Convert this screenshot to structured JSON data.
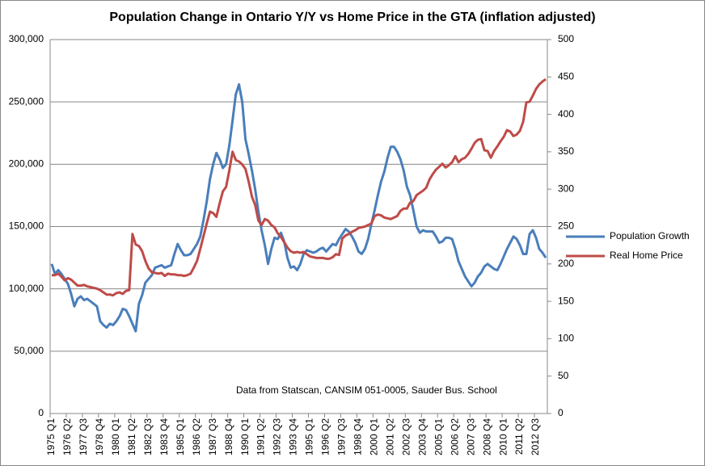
{
  "chart_data": {
    "type": "line",
    "title": "Population Change in Ontario Y/Y vs  Home Price in the GTA (inflation adjusted)",
    "annotation": "Data from Statscan, CANSIM 051-0005,  Sauder Bus. School",
    "categories": [
      "1975 Q1",
      null,
      null,
      null,
      null,
      "1976 Q2",
      null,
      null,
      null,
      null,
      "1977 Q3",
      null,
      null,
      null,
      null,
      "1978 Q4",
      null,
      null,
      null,
      null,
      "1980 Q1",
      null,
      null,
      null,
      null,
      "1981 Q2",
      null,
      null,
      null,
      null,
      "1982 Q3",
      null,
      null,
      null,
      null,
      "1983 Q4",
      null,
      null,
      null,
      null,
      "1985 Q1",
      null,
      null,
      null,
      null,
      "1986 Q2",
      null,
      null,
      null,
      null,
      "1987 Q3",
      null,
      null,
      null,
      null,
      "1988 Q4",
      null,
      null,
      null,
      null,
      "1990 Q1",
      null,
      null,
      null,
      null,
      "1991 Q2",
      null,
      null,
      null,
      null,
      "1992 Q3",
      null,
      null,
      null,
      null,
      "1993 Q4",
      null,
      null,
      null,
      null,
      "1995 Q1",
      null,
      null,
      null,
      null,
      "1996 Q2",
      null,
      null,
      null,
      null,
      "1997 Q3",
      null,
      null,
      null,
      null,
      "1998 Q4",
      null,
      null,
      null,
      null,
      "2000 Q1",
      null,
      null,
      null,
      null,
      "2001 Q2",
      null,
      null,
      null,
      null,
      "2002 Q3",
      null,
      null,
      null,
      null,
      "2003 Q4",
      null,
      null,
      null,
      null,
      "2005 Q1",
      null,
      null,
      null,
      null,
      "2006 Q2",
      null,
      null,
      null,
      null,
      "2007 Q3",
      null,
      null,
      null,
      null,
      "2008 Q4",
      null,
      null,
      null,
      null,
      "2010 Q1",
      null,
      null,
      null,
      null,
      "2011 Q2",
      null,
      null,
      null,
      null,
      "2012 Q3",
      null,
      null,
      null
    ],
    "series": [
      {
        "name": "Population Growth",
        "color": "#4a7ebb",
        "axis": "y",
        "values": [
          120000,
          112000,
          115000,
          112000,
          108000,
          104000,
          96000,
          86000,
          92000,
          94000,
          91000,
          92000,
          90000,
          88000,
          86000,
          74000,
          71000,
          69000,
          72000,
          71000,
          74000,
          78000,
          84000,
          83000,
          78000,
          72000,
          66000,
          88000,
          95000,
          105000,
          108000,
          111000,
          117000,
          118000,
          119000,
          117000,
          118000,
          119000,
          128000,
          136000,
          131000,
          127000,
          127000,
          128000,
          132000,
          136000,
          142000,
          155000,
          170000,
          188000,
          200000,
          209000,
          204000,
          197000,
          200000,
          215000,
          235000,
          256000,
          264000,
          250000,
          220000,
          208000,
          195000,
          180000,
          162000,
          147000,
          135000,
          120000,
          132000,
          141000,
          140000,
          145000,
          138000,
          125000,
          117000,
          118000,
          115000,
          120000,
          128000,
          131000,
          130000,
          129000,
          130000,
          132000,
          133000,
          130000,
          133000,
          136000,
          135000,
          140000,
          144000,
          148000,
          146000,
          142000,
          137000,
          130000,
          128000,
          132000,
          140000,
          152000,
          163000,
          175000,
          186000,
          194000,
          205000,
          214000,
          214000,
          210000,
          204000,
          195000,
          182000,
          175000,
          163000,
          150000,
          145000,
          147000,
          146000,
          146000,
          146000,
          142000,
          137000,
          138000,
          141000,
          141000,
          140000,
          132000,
          122000,
          116000,
          110000,
          106000,
          102000,
          105000,
          110000,
          113000,
          118000,
          120000,
          118000,
          116000,
          115000,
          120000,
          126000,
          132000,
          137000,
          142000,
          140000,
          135000,
          128000,
          128000,
          144000,
          147000,
          141000,
          132000,
          129000,
          125000
        ]
      },
      {
        "name": "Real Home Price",
        "color": "#be4b48",
        "axis": "y2",
        "values": [
          185,
          185,
          187,
          183,
          178,
          181,
          179,
          175,
          171,
          171,
          172,
          170,
          169,
          168,
          167,
          165,
          162,
          159,
          159,
          158,
          161,
          162,
          160,
          164,
          165,
          240,
          226,
          224,
          217,
          204,
          194,
          189,
          188,
          187,
          188,
          184,
          187,
          186,
          186,
          185,
          185,
          184,
          185,
          187,
          195,
          204,
          220,
          237,
          254,
          270,
          268,
          263,
          281,
          297,
          303,
          325,
          350,
          339,
          337,
          333,
          327,
          310,
          290,
          279,
          258,
          252,
          260,
          258,
          252,
          249,
          241,
          236,
          229,
          222,
          217,
          215,
          216,
          215,
          216,
          213,
          210,
          209,
          208,
          208,
          208,
          207,
          207,
          209,
          213,
          212,
          234,
          238,
          240,
          243,
          245,
          248,
          249,
          250,
          252,
          254,
          264,
          266,
          265,
          262,
          261,
          260,
          262,
          264,
          271,
          274,
          274,
          282,
          284,
          292,
          295,
          298,
          302,
          313,
          320,
          326,
          330,
          334,
          329,
          332,
          336,
          344,
          336,
          340,
          342,
          347,
          354,
          362,
          366,
          367,
          352,
          351,
          342,
          351,
          357,
          364,
          370,
          379,
          377,
          371,
          373,
          378,
          390,
          416,
          417,
          425,
          434,
          440,
          444,
          447
        ]
      }
    ],
    "ylim": [
      0,
      300000
    ],
    "yticks": [
      0,
      {
        "value": 50000,
        "label": "50,000"
      },
      {
        "value": 100000,
        "label": "100,000"
      },
      {
        "value": 150000,
        "label": "150,000"
      },
      {
        "value": 200000,
        "label": "200,000"
      },
      {
        "value": 250000,
        "label": "250,000"
      },
      {
        "value": 300000,
        "label": "300,000"
      }
    ],
    "y2lim": [
      0,
      500
    ],
    "y2ticks": [
      0,
      50,
      100,
      150,
      200,
      250,
      300,
      350,
      400,
      450,
      500
    ],
    "grid": true,
    "legend": "right"
  }
}
